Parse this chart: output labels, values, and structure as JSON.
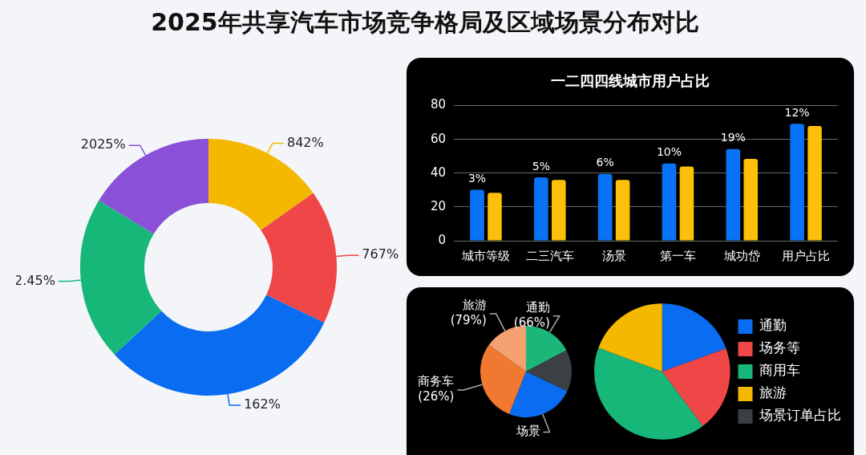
{
  "chart_data": [
    {
      "type": "donut",
      "title": "2025年共享汽车市场竞争格局及区域场景分布对比",
      "categories": [
        null,
        null,
        null,
        null,
        null
      ],
      "values": [
        15.2,
        16.9,
        31,
        20.6,
        16.3
      ],
      "colors": [
        "#f5b800",
        "#ef4747",
        "#0a6cf0",
        "#17b77a",
        "#8b50d8"
      ],
      "annotations": [
        "842%",
        "767%",
        "162%",
        "2.45%",
        "2025%"
      ]
    },
    {
      "type": "bar",
      "title": "一二四四线城市用户占比",
      "categories": [
        "城市等级",
        "二三汽车",
        "汤景",
        "第一车",
        "城功岱",
        "用户占比"
      ],
      "series": [
        {
          "color": "#0a73f5",
          "values": [
            30.2,
            37.5,
            39.5,
            45.7,
            54.3,
            69.2
          ]
        },
        {
          "color": "#fcc00a",
          "values": [
            28.4,
            36,
            36,
            43.9,
            48.5,
            67.9
          ]
        }
      ],
      "ylim": [
        0,
        80
      ],
      "yticks": [
        0,
        20,
        40,
        60,
        80
      ],
      "grid": "y",
      "annotations": [
        {
          "text": "3%",
          "x": "城市等级",
          "y": 30.2
        },
        {
          "text": "5%",
          "x": "二三汽车",
          "y": 37.5
        },
        {
          "text": "6%",
          "x": "汤景",
          "y": 39.5
        },
        {
          "text": "10%",
          "x": "第一车",
          "y": 45.7
        },
        {
          "text": "19%",
          "x": "城功岱",
          "y": 54.3
        },
        {
          "text": "12%",
          "x": "用户占比",
          "y": 69.2
        }
      ]
    },
    {
      "type": "pie",
      "categories": [
        "通勤",
        null,
        "场景",
        "商务车",
        "旅游"
      ],
      "values": [
        17.3,
        14.8,
        23.9,
        28.8,
        15.2
      ],
      "colors": [
        "#1db67a",
        "#3c3f44",
        "#0a6cf0",
        "#f07830",
        "#f5a070"
      ],
      "annotations": [
        {
          "text": "(66%)",
          "x": "通勤"
        },
        {
          "text": "(26%)",
          "x": "商务车"
        },
        {
          "text": "(79%)",
          "x": "旅游"
        }
      ]
    },
    {
      "type": "pie",
      "categories": [
        "通勤",
        "场务等",
        "商用车",
        "旅游",
        "场景订单占比"
      ],
      "values": [
        19.5,
        20.3,
        40.9,
        19.3,
        0
      ],
      "colors": [
        "#0a6cf0",
        "#ef4747",
        "#17b77a",
        "#f5b800",
        "#3c3f44"
      ],
      "legend": "right"
    }
  ]
}
